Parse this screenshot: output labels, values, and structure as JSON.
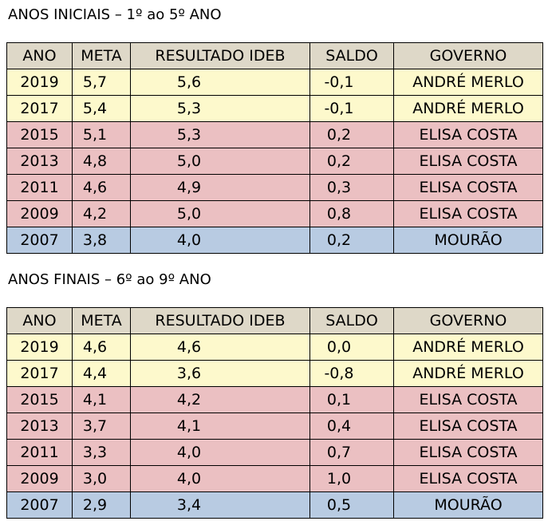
{
  "colors": {
    "header": "#ded8c8",
    "andre_merlo": "#fdf9cc",
    "elisa_costa": "#ebc0c2",
    "mourao": "#b8cbe2"
  },
  "tables": [
    {
      "title": "ANOS INICIAIS – 1º ao 5º ANO",
      "headers": [
        "ANO",
        "META",
        "RESULTADO IDEB",
        "SALDO",
        "GOVERNO"
      ],
      "rows": [
        {
          "ano": "2019",
          "meta": "5,7",
          "resultado": "5,6",
          "saldo": "-0,1",
          "governo": "ANDRÉ MERLO",
          "group": "andre"
        },
        {
          "ano": "2017",
          "meta": "5,4",
          "resultado": "5,3",
          "saldo": "-0,1",
          "governo": "ANDRÉ MERLO",
          "group": "andre"
        },
        {
          "ano": "2015",
          "meta": "5,1",
          "resultado": "5,3",
          "saldo": "0,2",
          "governo": "ELISA COSTA",
          "group": "elisa"
        },
        {
          "ano": "2013",
          "meta": "4,8",
          "resultado": "5,0",
          "saldo": "0,2",
          "governo": "ELISA COSTA",
          "group": "elisa"
        },
        {
          "ano": "2011",
          "meta": "4,6",
          "resultado": "4,9",
          "saldo": "0,3",
          "governo": "ELISA COSTA",
          "group": "elisa"
        },
        {
          "ano": "2009",
          "meta": "4,2",
          "resultado": "5,0",
          "saldo": "0,8",
          "governo": "ELISA COSTA",
          "group": "elisa"
        },
        {
          "ano": "2007",
          "meta": "3,8",
          "resultado": "4,0",
          "saldo": "0,2",
          "governo": "MOURÃO",
          "group": "mourao"
        }
      ]
    },
    {
      "title": "ANOS FINAIS – 6º ao 9º ANO",
      "headers": [
        "ANO",
        "META",
        "RESULTADO IDEB",
        "SALDO",
        "GOVERNO"
      ],
      "rows": [
        {
          "ano": "2019",
          "meta": "4,6",
          "resultado": "4,6",
          "saldo": "0,0",
          "governo": "ANDRÉ MERLO",
          "group": "andre"
        },
        {
          "ano": "2017",
          "meta": "4,4",
          "resultado": "3,6",
          "saldo": "-0,8",
          "governo": "ANDRÉ MERLO",
          "group": "andre"
        },
        {
          "ano": "2015",
          "meta": "4,1",
          "resultado": "4,2",
          "saldo": "0,1",
          "governo": "ELISA COSTA",
          "group": "elisa"
        },
        {
          "ano": "2013",
          "meta": "3,7",
          "resultado": "4,1",
          "saldo": "0,4",
          "governo": "ELISA COSTA",
          "group": "elisa"
        },
        {
          "ano": "2011",
          "meta": "3,3",
          "resultado": "4,0",
          "saldo": "0,7",
          "governo": "ELISA COSTA",
          "group": "elisa"
        },
        {
          "ano": "2009",
          "meta": "3,0",
          "resultado": "4,0",
          "saldo": "1,0",
          "governo": "ELISA COSTA",
          "group": "elisa"
        },
        {
          "ano": "2007",
          "meta": "2,9",
          "resultado": "3,4",
          "saldo": "0,5",
          "governo": "MOURÃO",
          "group": "mourao"
        }
      ]
    }
  ]
}
